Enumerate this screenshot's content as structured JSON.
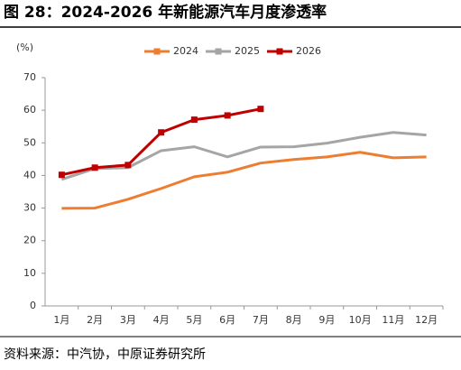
{
  "chart_data": {
    "type": "line",
    "title": "图 28：2024-2026 年新能源汽车月度渗透率",
    "y_label": "(%)",
    "categories": [
      "1月",
      "2月",
      "3月",
      "4月",
      "5月",
      "6月",
      "7月",
      "8月",
      "9月",
      "10月",
      "11月",
      "12月"
    ],
    "series": [
      {
        "name": "2024",
        "color": "#ed7d31",
        "marker": false,
        "values": [
          29.9,
          30.0,
          32.7,
          36.0,
          39.6,
          41.0,
          43.8,
          44.9,
          45.7,
          47.1,
          45.4,
          45.7
        ]
      },
      {
        "name": "2025",
        "color": "#a5a5a5",
        "marker": false,
        "values": [
          38.8,
          42.1,
          42.4,
          47.6,
          48.8,
          45.7,
          48.7,
          48.8,
          49.9,
          51.7,
          53.2,
          52.4
        ]
      },
      {
        "name": "2026",
        "color": "#c00000",
        "marker": true,
        "values": [
          40.2,
          42.4,
          43.2,
          53.2,
          57.1,
          58.4,
          60.4,
          null,
          null,
          null,
          null,
          null
        ]
      }
    ],
    "ylim": [
      0,
      70
    ],
    "yticks": [
      0,
      10,
      20,
      30,
      40,
      50,
      60,
      70
    ],
    "source": "资料来源：中汽协，中原证券研究所"
  }
}
